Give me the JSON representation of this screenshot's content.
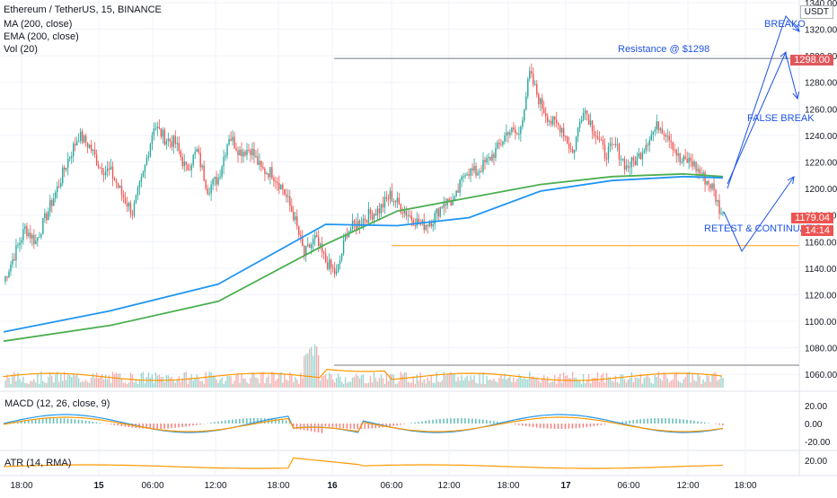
{
  "legend": {
    "symbol": "Ethereum / TetherUS, 15, BINANCE",
    "ma": "MA (200, close)",
    "ema": "EMA (200, close)",
    "vol": "Vol (20)"
  },
  "currency": "USDT",
  "annotations": {
    "resistance": "Resistance @ $1298",
    "breakout": "BREAKO",
    "false_break": "FALSE BREAK",
    "retest": "RETEST & CONTINUATIO"
  },
  "badges": {
    "resistance_price": "1298.00",
    "last_price": "1179.04",
    "countdown": "14:14"
  },
  "panes": {
    "macd_label": "MACD (12, 26, close, 9)",
    "atr_label": "ATR (14, RMA)"
  },
  "colors": {
    "up": "#26a69a",
    "down": "#ef5350",
    "ma": "#2196f3",
    "ema": "#4caf50",
    "vol_ma": "#ff9800",
    "resistance": "#787b86",
    "support": "#ffb74d",
    "annotation": "#1e53e5"
  },
  "chart_data": {
    "type": "candlestick",
    "title": "Ethereum / TetherUS, 15, BINANCE",
    "y_ticks": [
      "1340.00",
      "1320.00",
      "1300.00",
      "1280.00",
      "1260.00",
      "1240.00",
      "1220.00",
      "1200.00",
      "1180.00",
      "1160.00",
      "1140.00",
      "1120.00",
      "1100.00",
      "1080.00",
      "1060.00"
    ],
    "ylim": [
      1050,
      1342
    ],
    "x_ticks": [
      "18:00",
      "15",
      "06:00",
      "12:00",
      "18:00",
      "16",
      "06:00",
      "12:00",
      "18:00",
      "17",
      "06:00",
      "12:00",
      "18:00"
    ],
    "resistance_level": 1298,
    "support_level": 1157,
    "close_path": [
      [
        0,
        1130
      ],
      [
        6,
        1150
      ],
      [
        12,
        1170
      ],
      [
        18,
        1160
      ],
      [
        24,
        1180
      ],
      [
        30,
        1200
      ],
      [
        36,
        1222
      ],
      [
        42,
        1240
      ],
      [
        48,
        1232
      ],
      [
        54,
        1216
      ],
      [
        60,
        1212
      ],
      [
        66,
        1196
      ],
      [
        72,
        1182
      ],
      [
        78,
        1210
      ],
      [
        84,
        1248
      ],
      [
        90,
        1238
      ],
      [
        96,
        1234
      ],
      [
        102,
        1214
      ],
      [
        108,
        1228
      ],
      [
        114,
        1200
      ],
      [
        120,
        1208
      ],
      [
        126,
        1240
      ],
      [
        132,
        1228
      ],
      [
        138,
        1230
      ],
      [
        144,
        1214
      ],
      [
        150,
        1212
      ],
      [
        156,
        1200
      ],
      [
        162,
        1180
      ],
      [
        168,
        1150
      ],
      [
        174,
        1162
      ],
      [
        180,
        1145
      ],
      [
        186,
        1135
      ],
      [
        192,
        1168
      ],
      [
        198,
        1174
      ],
      [
        204,
        1180
      ],
      [
        210,
        1184
      ],
      [
        216,
        1195
      ],
      [
        222,
        1186
      ],
      [
        228,
        1178
      ],
      [
        234,
        1172
      ],
      [
        240,
        1177
      ],
      [
        246,
        1190
      ],
      [
        252,
        1190
      ],
      [
        258,
        1214
      ],
      [
        264,
        1212
      ],
      [
        270,
        1220
      ],
      [
        276,
        1230
      ],
      [
        282,
        1244
      ],
      [
        288,
        1240
      ],
      [
        294,
        1286
      ],
      [
        300,
        1264
      ],
      [
        306,
        1250
      ],
      [
        312,
        1246
      ],
      [
        318,
        1226
      ],
      [
        324,
        1262
      ],
      [
        330,
        1244
      ],
      [
        336,
        1226
      ],
      [
        342,
        1232
      ],
      [
        348,
        1216
      ],
      [
        354,
        1222
      ],
      [
        360,
        1237
      ],
      [
        366,
        1248
      ],
      [
        372,
        1240
      ],
      [
        378,
        1220
      ],
      [
        384,
        1221
      ],
      [
        390,
        1210
      ],
      [
        396,
        1201
      ],
      [
        400,
        1185
      ],
      [
        402,
        1179
      ]
    ],
    "ma_200": [
      [
        0,
        1092
      ],
      [
        60,
        1108
      ],
      [
        120,
        1128
      ],
      [
        180,
        1173
      ],
      [
        220,
        1172
      ],
      [
        260,
        1178
      ],
      [
        300,
        1198
      ],
      [
        340,
        1206
      ],
      [
        380,
        1209
      ],
      [
        402,
        1208
      ]
    ],
    "ema_200": [
      [
        0,
        1085
      ],
      [
        60,
        1097
      ],
      [
        120,
        1115
      ],
      [
        180,
        1158
      ],
      [
        220,
        1183
      ],
      [
        260,
        1193
      ],
      [
        300,
        1203
      ],
      [
        340,
        1209
      ],
      [
        380,
        1211
      ],
      [
        402,
        1209
      ]
    ],
    "macd": {
      "ylim": [
        -26,
        26
      ],
      "ticks": [
        "20.00",
        "0.00",
        "-20.00"
      ]
    },
    "atr": {
      "ticks": [
        "20.00"
      ]
    }
  }
}
